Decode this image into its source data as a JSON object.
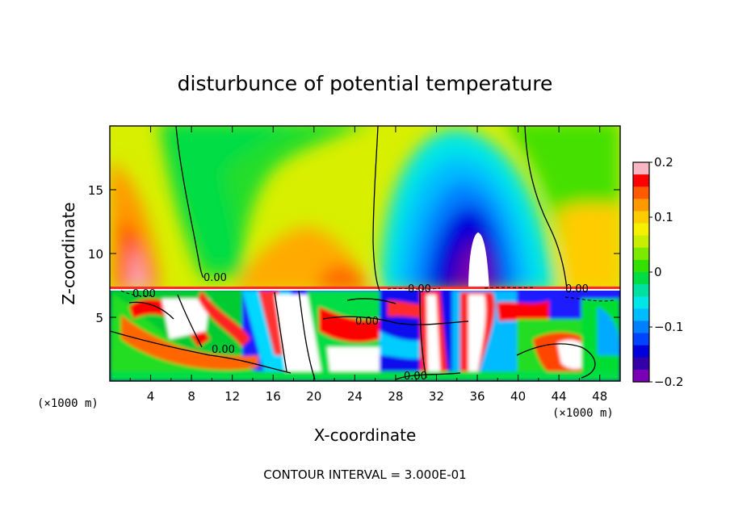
{
  "chart_data": {
    "type": "heatmap",
    "title": "disturbunce of potential temperature",
    "xlabel": "X-coordinate",
    "ylabel": "Z-coordinate",
    "x_unit": "(×1000 m)",
    "x_unit_right": "(×1000 m)",
    "xlim": [
      0,
      50
    ],
    "ylim": [
      0,
      20
    ],
    "x_ticks": [
      4,
      8,
      12,
      16,
      20,
      24,
      28,
      32,
      36,
      40,
      44,
      48
    ],
    "x_tick_labels": [
      "4",
      "8",
      "12",
      "16",
      "20",
      "24",
      "28",
      "32",
      "36",
      "40",
      "44",
      "48"
    ],
    "y_ticks": [
      5,
      10,
      15
    ],
    "y_tick_labels": [
      "5",
      "10",
      "15"
    ],
    "colorbar": {
      "range": [
        -0.2,
        0.2
      ],
      "tick_values": [
        0.2,
        0.1,
        0,
        -0.1,
        -0.2
      ],
      "tick_labels": [
        "0.2",
        "0.1",
        "0",
        "−0.1",
        "−0.2"
      ],
      "colors": [
        "#f7b6c1",
        "#ff0000",
        "#ff5a00",
        "#ff9900",
        "#ffcc00",
        "#f4f000",
        "#c8ee00",
        "#7cea00",
        "#33e000",
        "#00dd44",
        "#00e0a0",
        "#00e6e6",
        "#00bbff",
        "#007fff",
        "#0044ff",
        "#0000dd",
        "#3300aa",
        "#7a00b5"
      ]
    },
    "contour_labels": [
      "0.00",
      "0.00",
      "0.00",
      "0.00",
      "0.00",
      "0.00",
      "0.00"
    ],
    "contour_interval_text": "CONTOUR INTERVAL = 3.000E-01",
    "grid": false,
    "legend": "colorbar-right"
  }
}
